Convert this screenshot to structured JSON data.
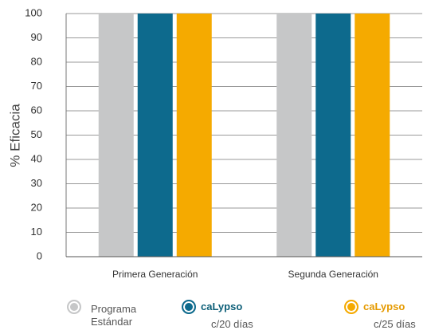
{
  "chart_data": {
    "type": "bar",
    "y_label": "% Eficacia",
    "categories": [
      "Primera Generación",
      "Segunda Generación"
    ],
    "series": [
      {
        "name": "Programa Estándar",
        "color": "#c6c7c8",
        "values": [
          100,
          100
        ]
      },
      {
        "name": "caLypso",
        "subtitle": "c/20 días",
        "color": "#0d6a8d",
        "values": [
          100,
          100
        ]
      },
      {
        "name": "caLypso",
        "subtitle": "c/25 días",
        "color": "#f5aa00",
        "values": [
          100,
          100
        ]
      }
    ],
    "ylim": [
      0,
      100
    ],
    "yticks": [
      0,
      10,
      20,
      30,
      40,
      50,
      60,
      70,
      80,
      90,
      100
    ],
    "grid": true
  }
}
